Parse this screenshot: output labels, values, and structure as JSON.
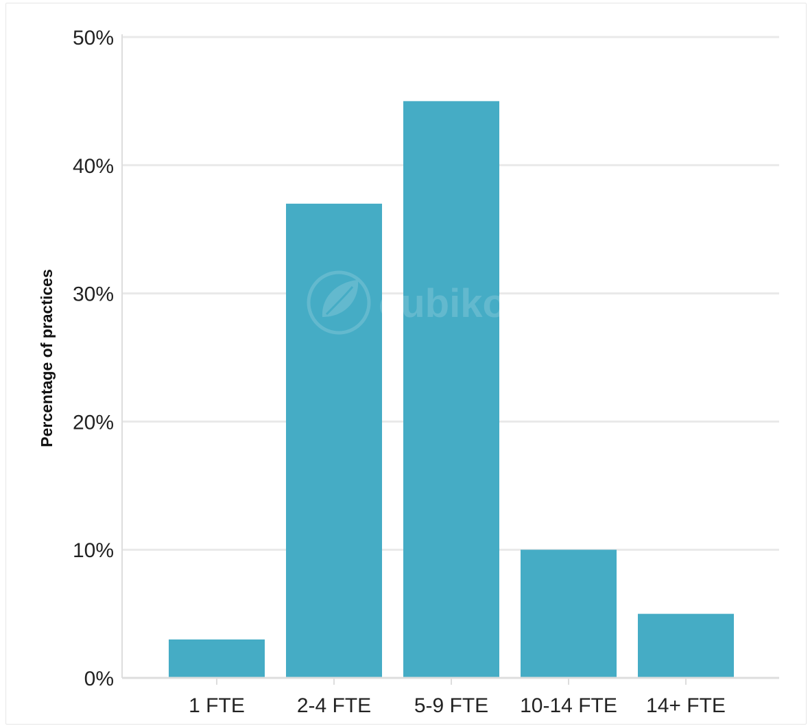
{
  "chart_data": {
    "type": "bar",
    "categories": [
      "1 FTE",
      "2-4 FTE",
      "5-9 FTE",
      "10-14 FTE",
      "14+ FTE"
    ],
    "values": [
      3,
      37,
      45,
      10,
      5
    ],
    "unit": "%",
    "title": "",
    "xlabel": "",
    "ylabel": "Percentage of practices",
    "ylim": [
      0,
      50
    ],
    "yticks": [
      0,
      10,
      20,
      30,
      40,
      50
    ],
    "ytick_labels": [
      "0%",
      "10%",
      "20%",
      "30%",
      "40%",
      "50%"
    ],
    "grid": true,
    "legend": "none",
    "bar_color": "#45acc5",
    "grid_color": "#e9e9e9",
    "axis_color": "#dddddd"
  },
  "watermark": {
    "text": "cubiko",
    "icon": "leaf-logo-icon"
  }
}
